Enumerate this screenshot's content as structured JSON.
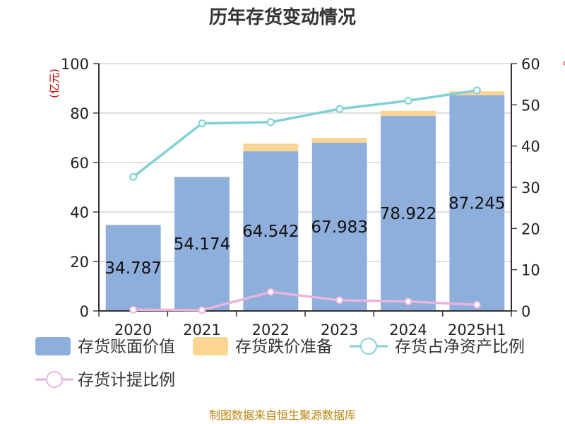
{
  "chart_data": {
    "type": "bar",
    "title": "历年存货变动情况",
    "categories": [
      "2020",
      "2021",
      "2022",
      "2023",
      "2024",
      "2025H1"
    ],
    "y_left": {
      "unit": "(亿元)",
      "ylim": [
        0,
        100
      ],
      "ticks": [
        0,
        20,
        40,
        60,
        80,
        100
      ]
    },
    "y_right": {
      "unit": "%",
      "ylim": [
        0,
        60
      ],
      "ticks": [
        0,
        10,
        20,
        30,
        40,
        50,
        60
      ]
    },
    "series": [
      {
        "name": "存货账面价值",
        "type": "bar",
        "axis": "left",
        "color": "#8eaedb",
        "values": [
          34.787,
          54.174,
          64.542,
          67.983,
          78.922,
          87.245
        ],
        "labels": [
          "34.787",
          "54.174",
          "64.542",
          "67.983",
          "78.922",
          "87.245"
        ]
      },
      {
        "name": "存货跌价准备",
        "type": "bar-stack",
        "axis": "left",
        "color": "#fdd592",
        "values": [
          0.1,
          0.1,
          3.1,
          2.0,
          2.0,
          1.6
        ]
      },
      {
        "name": "存货占净资产比例",
        "type": "line",
        "axis": "right",
        "color": "#7fd1d4",
        "values": [
          32.5,
          45.5,
          45.8,
          49.0,
          51.0,
          53.5
        ]
      },
      {
        "name": "存货计提比例",
        "type": "line",
        "axis": "right",
        "color": "#e7b4db",
        "values": [
          0.3,
          0.2,
          4.6,
          2.6,
          2.3,
          1.5
        ]
      }
    ],
    "grid": true,
    "legend": "bottom"
  },
  "source": "制图数据来自恒生聚源数据库"
}
